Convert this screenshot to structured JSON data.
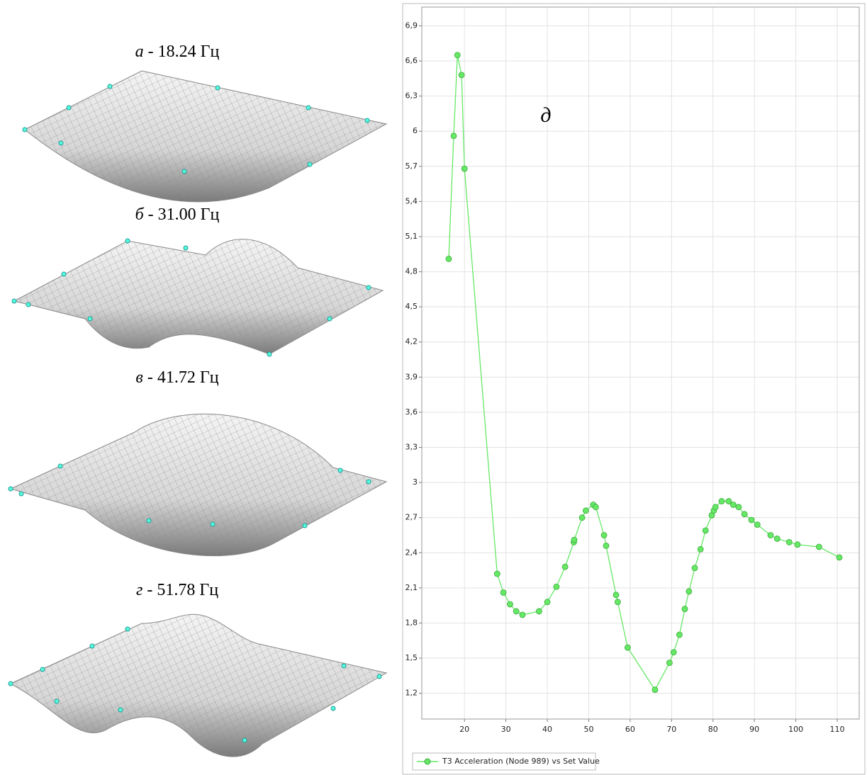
{
  "panels": [
    {
      "letter": "а",
      "text": "- 18.24 Гц"
    },
    {
      "letter": "б",
      "text": "- 31.00 Гц"
    },
    {
      "letter": "в",
      "text": "- 41.72 Гц"
    },
    {
      "letter": "г",
      "text": "- 51.78 Гц"
    }
  ],
  "chart_data": {
    "type": "line",
    "annotation": "д",
    "x": [
      16.2,
      17.4,
      18.3,
      19.3,
      20.0,
      27.9,
      29.4,
      31.0,
      32.5,
      34.0,
      38.0,
      40.0,
      42.2,
      44.3,
      46.4,
      46.5,
      48.4,
      49.3,
      51.1,
      51.7,
      53.7,
      54.2,
      56.6,
      57.0,
      59.4,
      66.0,
      69.5,
      70.5,
      71.9,
      73.2,
      74.2,
      75.6,
      77.0,
      78.2,
      79.7,
      80.2,
      80.6,
      82.1,
      83.8,
      84.9,
      86.2,
      87.6,
      89.3,
      90.7,
      93.9,
      95.5,
      98.4,
      100.4,
      105.6,
      110.5
    ],
    "series": [
      {
        "name": "T3 Acceleration (Node 989) vs Set Value",
        "color": "#66e866",
        "values": [
          4.91,
          5.96,
          6.65,
          6.48,
          5.68,
          2.22,
          2.06,
          1.96,
          1.9,
          1.87,
          1.9,
          1.98,
          2.11,
          2.28,
          2.49,
          2.51,
          2.7,
          2.76,
          2.81,
          2.79,
          2.55,
          2.46,
          2.04,
          1.98,
          1.59,
          1.23,
          1.46,
          1.55,
          1.7,
          1.92,
          2.07,
          2.27,
          2.43,
          2.59,
          2.72,
          2.76,
          2.79,
          2.84,
          2.84,
          2.81,
          2.79,
          2.73,
          2.68,
          2.64,
          2.55,
          2.52,
          2.49,
          2.47,
          2.45,
          2.36
        ]
      }
    ],
    "xlim": [
      9.7,
      115.3
    ],
    "xticks": [
      20,
      30,
      40,
      50,
      60,
      70,
      80,
      90,
      100,
      110
    ],
    "ylim": [
      0.98,
      7.06
    ],
    "yticks": [
      {
        "value": 1.2,
        "label": "1,2"
      },
      {
        "value": 1.5,
        "label": "1,5"
      },
      {
        "value": 1.8,
        "label": "1,8"
      },
      {
        "value": 2.1,
        "label": "2,1"
      },
      {
        "value": 2.4,
        "label": "2,4"
      },
      {
        "value": 2.7,
        "label": "2,7"
      },
      3,
      {
        "value": 3.3,
        "label": "3,3"
      },
      {
        "value": 3.6,
        "label": "3,6"
      },
      {
        "value": 3.9,
        "label": "3,9"
      },
      {
        "value": 4.2,
        "label": "4,2"
      },
      {
        "value": 4.5,
        "label": "4,5"
      },
      {
        "value": 4.8,
        "label": "4,8"
      },
      {
        "value": 5.1,
        "label": "5,1"
      },
      {
        "value": 5.4,
        "label": "5,4"
      },
      {
        "value": 5.7,
        "label": "5,7"
      },
      6,
      {
        "value": 6.3,
        "label": "6,3"
      },
      {
        "value": 6.6,
        "label": "6,6"
      },
      {
        "value": 6.9,
        "label": "6,9"
      }
    ],
    "grid": true,
    "legend": "bottom-left"
  }
}
